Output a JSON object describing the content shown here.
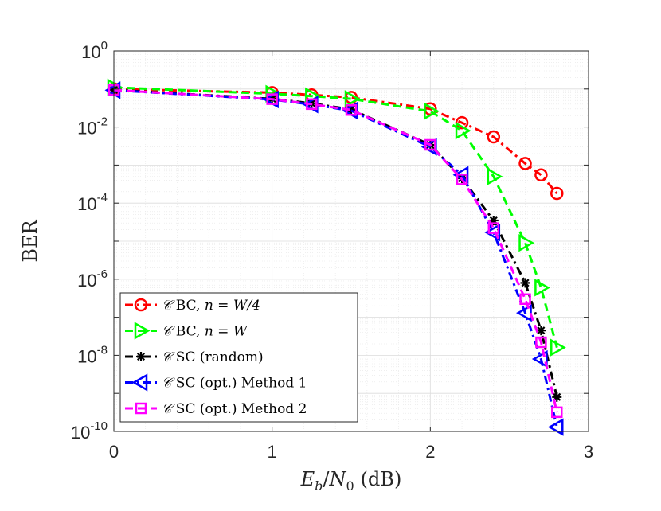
{
  "chart_data": {
    "type": "line",
    "yscale": "log",
    "xlabel": "E_b/N_0 (dB)",
    "xlabel_parts": {
      "main": "E",
      "sub1": "b",
      "slash": "/",
      "main2": "N",
      "sub2": "0",
      "unit": "(dB)"
    },
    "ylabel": "BER",
    "xlim": [
      0,
      3
    ],
    "ylim_exp": [
      -10,
      0
    ],
    "xticks": [
      "0",
      "1",
      "2",
      "3"
    ],
    "yticks": [
      {
        "base": "10",
        "exp": "0"
      },
      {
        "base": "10",
        "exp": "-2"
      },
      {
        "base": "10",
        "exp": "-4"
      },
      {
        "base": "10",
        "exp": "-6"
      },
      {
        "base": "10",
        "exp": "-8"
      },
      {
        "base": "10",
        "exp": "-10"
      }
    ],
    "grid": true,
    "legend_position": "bottom-left",
    "series": [
      {
        "name": "𝒞 BC, n = W/4",
        "legend": {
          "code": "𝒞",
          "scheme": "BC,",
          "var": "n",
          "eq": "=",
          "val": "W/4"
        },
        "color": "#ff0000",
        "marker": "circle",
        "linestyle": "dashdot",
        "x": [
          0,
          1,
          1.25,
          1.5,
          2,
          2.2,
          2.4,
          2.6,
          2.7,
          2.8
        ],
        "y": [
          0.1,
          0.08,
          0.07,
          0.06,
          0.03,
          0.013,
          0.0055,
          0.0011,
          0.00055,
          0.00018
        ]
      },
      {
        "name": "𝒞 BC, n = W",
        "legend": {
          "code": "𝒞",
          "scheme": "BC,",
          "var": "n",
          "eq": "=",
          "val": "W"
        },
        "color": "#00ff00",
        "marker": "triangle-right",
        "linestyle": "dashed",
        "x": [
          0,
          1,
          1.25,
          1.5,
          2,
          2.2,
          2.4,
          2.6,
          2.7,
          2.8
        ],
        "y": [
          0.11,
          0.075,
          0.065,
          0.055,
          0.026,
          0.008,
          0.0005,
          9e-06,
          6e-07,
          1.6e-08
        ]
      },
      {
        "name": "𝒞 SC (random)",
        "legend": {
          "code": "𝒞",
          "text": "SC (random)"
        },
        "color": "#000000",
        "marker": "asterisk",
        "linestyle": "dashdot",
        "x": [
          0,
          1,
          1.25,
          1.5,
          2,
          2.2,
          2.4,
          2.6,
          2.7,
          2.8
        ],
        "y": [
          0.095,
          0.055,
          0.042,
          0.029,
          0.0034,
          0.00045,
          3.5e-05,
          8e-07,
          4.5e-08,
          8e-10
        ]
      },
      {
        "name": "𝒞 SC (opt.) Method 1",
        "legend": {
          "code": "𝒞",
          "text": "SC (opt.) Method 1"
        },
        "color": "#0000ff",
        "marker": "triangle-left",
        "linestyle": "dashdot",
        "x": [
          0,
          1,
          1.25,
          1.5,
          2,
          2.2,
          2.4,
          2.6,
          2.7,
          2.8
        ],
        "y": [
          0.093,
          0.053,
          0.039,
          0.027,
          0.003,
          0.00055,
          1.7e-05,
          1.3e-07,
          8e-09,
          1.3e-10
        ]
      },
      {
        "name": "𝒞 SC (opt.) Method 2",
        "legend": {
          "code": "𝒞",
          "text": "SC (opt.) Method 2"
        },
        "color": "#ff00ff",
        "marker": "square",
        "linestyle": "dashed",
        "x": [
          0,
          1,
          1.25,
          1.5,
          2,
          2.2,
          2.4,
          2.6,
          2.7,
          2.8
        ],
        "y": [
          0.094,
          0.054,
          0.04,
          0.028,
          0.0034,
          0.00042,
          2.2e-05,
          3e-07,
          2.2e-08,
          3.2e-10
        ]
      }
    ]
  }
}
